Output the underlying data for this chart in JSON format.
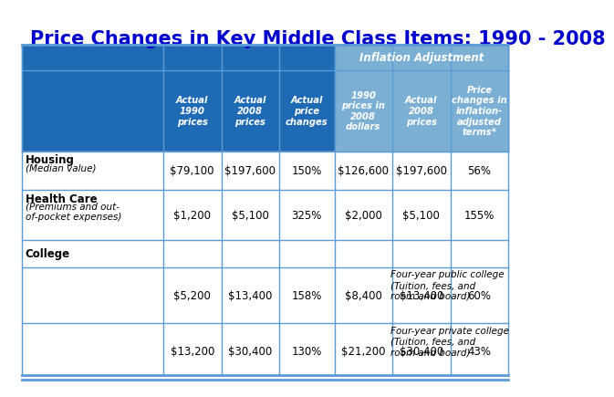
{
  "title": "Price Changes in Key Middle Class Items: 1990 - 2008",
  "title_color": "#0000CC",
  "title_fontsize": 15,
  "bg_color": "#FFFFFF",
  "header_bg_dark": "#1F6AB5",
  "header_bg_light": "#7BAFD4",
  "header_text_color": "#FFFFFF",
  "cell_border_color": "#5B9BD5",
  "inflation_label": "Inflation Adjustment",
  "col_headers": [
    "Actual\n1990\nprices",
    "Actual\n2008\nprices",
    "Actual\nprice\nchanges",
    "1990\nprices in\n2008\ndollars",
    "Actual\n2008\nprices",
    "Price\nchanges in\ninflation-\nadjusted\nterms*"
  ],
  "rows": [
    {
      "category": "Housing",
      "subcategory": "(Median value)",
      "sub_indent": 0,
      "values": [
        "$79,100",
        "$197,600",
        "150%",
        "$126,600",
        "$197,600",
        "56%"
      ]
    },
    {
      "category": "Health Care",
      "subcategory": "(Premiums and out-\nof-pocket expenses)",
      "sub_indent": 0,
      "values": [
        "$1,200",
        "$5,100",
        "325%",
        "$2,000",
        "$5,100",
        "155%"
      ]
    },
    {
      "category": "College",
      "subcategory": "",
      "sub_indent": 0,
      "values": [
        "",
        "",
        "",
        "",
        "",
        ""
      ]
    },
    {
      "category": "",
      "subcategory": "Four-year public college\n(Tuition, fees, and\nroom and board)",
      "sub_indent": 0.015,
      "values": [
        "$5,200",
        "$13,400",
        "158%",
        "$8,400",
        "$13,400",
        "60%"
      ]
    },
    {
      "category": "",
      "subcategory": "Four-year private college\n(Tuition, fees, and\nroom and board)",
      "sub_indent": 0.015,
      "values": [
        "$13,200",
        "$30,400",
        "130%",
        "$21,200",
        "$30,400",
        "43%"
      ]
    }
  ]
}
